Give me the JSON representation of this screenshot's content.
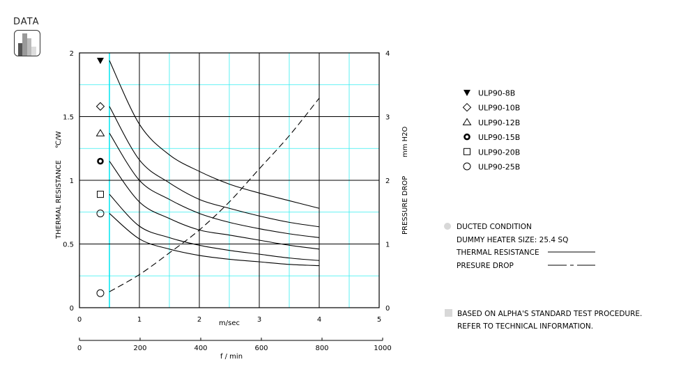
{
  "header": {
    "section_label": "DATA",
    "icon": "bar-chart-icon"
  },
  "colors": {
    "curve": "#000000",
    "grid_major": "#000000",
    "grid_minor": "#33eef0",
    "start_line": "#00e5f0",
    "note_bullet": "#d8d8d8"
  },
  "chart_data": {
    "type": "line",
    "xlabel": "m/sec",
    "xlim": [
      0,
      5
    ],
    "x_ticks": [
      "0",
      "1",
      "2",
      "3",
      "4",
      "5"
    ],
    "x2label": "f / min",
    "x2lim": [
      0,
      1000
    ],
    "x2_ticks": [
      "0",
      "200",
      "400",
      "600",
      "800",
      "1000"
    ],
    "ylabel": "THERMAL  RESISTANCE",
    "ylabel_unit": "℃/W",
    "ylim": [
      0,
      2
    ],
    "y_ticks": [
      "0",
      "0.5",
      "1",
      "1.5",
      "2"
    ],
    "y2label": "PRESSURE  DROP",
    "y2label_unit": "mm H2O",
    "y2lim": [
      0,
      4
    ],
    "y2_ticks": [
      "0",
      "1",
      "2",
      "3",
      "4"
    ],
    "grid": true,
    "x": [
      0.5,
      1,
      1.5,
      2,
      2.5,
      3,
      3.5,
      4
    ],
    "series": [
      {
        "name": "ULP90-8B",
        "marker": "filled-down-triangle",
        "values": [
          1.94,
          1.44,
          1.2,
          1.07,
          0.97,
          0.9,
          0.84,
          0.78
        ]
      },
      {
        "name": "ULP90-10B",
        "marker": "diamond",
        "values": [
          1.58,
          1.16,
          0.98,
          0.85,
          0.78,
          0.72,
          0.67,
          0.635
        ]
      },
      {
        "name": "ULP90-12B",
        "marker": "triangle",
        "values": [
          1.37,
          1.0,
          0.85,
          0.74,
          0.67,
          0.62,
          0.58,
          0.55
        ]
      },
      {
        "name": "ULP90-15B",
        "marker": "bold-circle",
        "values": [
          1.15,
          0.83,
          0.7,
          0.61,
          0.57,
          0.53,
          0.49,
          0.46
        ]
      },
      {
        "name": "ULP90-20B",
        "marker": "square",
        "values": [
          0.89,
          0.64,
          0.55,
          0.49,
          0.45,
          0.42,
          0.39,
          0.37
        ]
      },
      {
        "name": "ULP90-25B",
        "marker": "circle",
        "values": [
          0.74,
          0.54,
          0.46,
          0.41,
          0.38,
          0.36,
          0.34,
          0.33
        ]
      }
    ],
    "pressure_drop": {
      "axis": "right",
      "style": "dashed",
      "marker": "circle",
      "values": [
        0.25,
        0.52,
        0.86,
        1.22,
        1.66,
        2.18,
        2.7,
        3.29
      ]
    },
    "legend_placement": "right"
  },
  "notes": {
    "condition": "DUCTED CONDITION",
    "heater": "DUMMY HEATER SIZE: 25.4 SQ",
    "thermal_label": "THERMAL RESISTANCE",
    "pressure_label": "PRESURE DROP",
    "footnote_1": "BASED ON ALPHA'S STANDARD TEST PROCEDURE.",
    "footnote_2": "REFER TO TECHNICAL INFORMATION."
  }
}
